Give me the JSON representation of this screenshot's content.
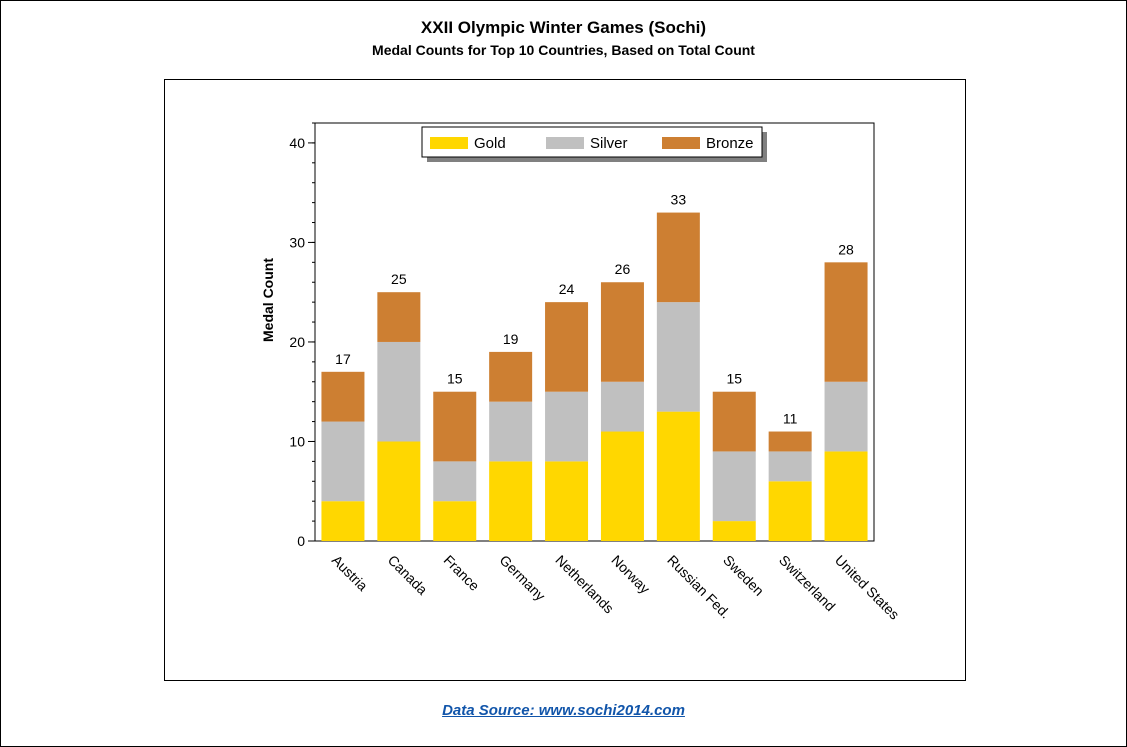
{
  "title": "XXII Olympic Winter Games (Sochi)",
  "subtitle": "Medal Counts for Top 10 Countries, Based on Total Count",
  "footer": {
    "source_link": "Data Source: www.sochi2014.com"
  },
  "chart_data": {
    "type": "bar",
    "stacked": true,
    "ylabel": "Medal Count",
    "xlabel": "",
    "ylim": [
      0,
      42
    ],
    "yticks": [
      0,
      10,
      20,
      30,
      40
    ],
    "legend_position": "top",
    "categories": [
      "Austria",
      "Canada",
      "France",
      "Germany",
      "Netherlands",
      "Norway",
      "Russian Fed.",
      "Sweden",
      "Switzerland",
      "United States"
    ],
    "series": [
      {
        "name": "Gold",
        "color": "#FFD700",
        "values": [
          4,
          10,
          4,
          8,
          8,
          11,
          13,
          2,
          6,
          9
        ]
      },
      {
        "name": "Silver",
        "color": "#C0C0C0",
        "values": [
          8,
          10,
          4,
          6,
          7,
          5,
          11,
          7,
          3,
          7
        ]
      },
      {
        "name": "Bronze",
        "color": "#CD7F32",
        "values": [
          5,
          5,
          7,
          5,
          9,
          10,
          9,
          6,
          2,
          12
        ]
      }
    ],
    "totals": [
      "17",
      "25",
      "15",
      "19",
      "24",
      "26",
      "33",
      "15",
      "11",
      "28"
    ]
  }
}
